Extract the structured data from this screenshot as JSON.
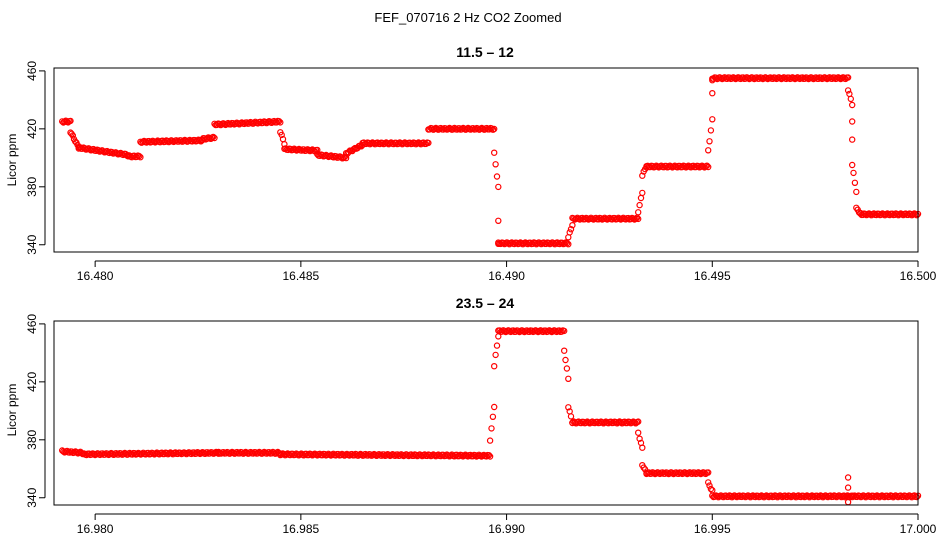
{
  "figure": {
    "title": "FEF_070716  2 Hz CO2 Zoomed"
  },
  "chart_data": [
    {
      "type": "scatter",
      "title": "11.5 – 12",
      "xlabel": "",
      "ylabel": "Licor ppm",
      "xlim": [
        16.479,
        16.5
      ],
      "ylim": [
        335,
        462
      ],
      "xticks": [
        "16.480",
        "16.485",
        "16.490",
        "16.495",
        "16.500"
      ],
      "xtick_values": [
        16.48,
        16.485,
        16.49,
        16.495,
        16.5
      ],
      "yticks": [
        "340",
        "380",
        "420",
        "460"
      ],
      "ytick_values": [
        340,
        380,
        420,
        460
      ],
      "grid": false,
      "marker": "open-circle",
      "color": "#ff0000",
      "segments": [
        {
          "x": [
            16.4792,
            16.4794
          ],
          "y": [
            425,
            425
          ]
        },
        {
          "x": [
            16.4794,
            16.4796
          ],
          "y": [
            418,
            407
          ]
        },
        {
          "x": [
            16.4796,
            16.4808
          ],
          "y": [
            407,
            402
          ]
        },
        {
          "x": [
            16.4808,
            16.4811
          ],
          "y": [
            401,
            401
          ]
        },
        {
          "x": [
            16.4811,
            16.4826
          ],
          "y": [
            411,
            412
          ]
        },
        {
          "x": [
            16.4826,
            16.4829
          ],
          "y": [
            413,
            414
          ]
        },
        {
          "x": [
            16.4829,
            16.4845
          ],
          "y": [
            423,
            425
          ]
        },
        {
          "x": [
            16.4845,
            16.4846
          ],
          "y": [
            418,
            410
          ]
        },
        {
          "x": [
            16.4846,
            16.4854
          ],
          "y": [
            406,
            405
          ]
        },
        {
          "x": [
            16.4854,
            16.4861
          ],
          "y": [
            402,
            400
          ]
        },
        {
          "x": [
            16.4861,
            16.4865
          ],
          "y": [
            403,
            409
          ]
        },
        {
          "x": [
            16.4865,
            16.4881
          ],
          "y": [
            410,
            410
          ]
        },
        {
          "x": [
            16.4881,
            16.4897
          ],
          "y": [
            420,
            420
          ]
        },
        {
          "x": [
            16.4897,
            16.4898
          ],
          "y": [
            403,
            380
          ]
        },
        {
          "x": [
            16.4898,
            16.4898
          ],
          "y": [
            356,
            341
          ]
        },
        {
          "x": [
            16.4898,
            16.4915
          ],
          "y": [
            341,
            341
          ]
        },
        {
          "x": [
            16.4915,
            16.4916
          ],
          "y": [
            345,
            354
          ]
        },
        {
          "x": [
            16.4916,
            16.4932
          ],
          "y": [
            358,
            358
          ]
        },
        {
          "x": [
            16.4932,
            16.4933
          ],
          "y": [
            363,
            376
          ]
        },
        {
          "x": [
            16.4933,
            16.4934
          ],
          "y": [
            388,
            394
          ]
        },
        {
          "x": [
            16.4934,
            16.4949
          ],
          "y": [
            394,
            394
          ]
        },
        {
          "x": [
            16.4949,
            16.495
          ],
          "y": [
            405,
            426
          ]
        },
        {
          "x": [
            16.495,
            16.495
          ],
          "y": [
            445,
            454
          ]
        },
        {
          "x": [
            16.495,
            16.4983
          ],
          "y": [
            455,
            455
          ]
        },
        {
          "x": [
            16.4983,
            16.4984
          ],
          "y": [
            447,
            437
          ]
        },
        {
          "x": [
            16.4984,
            16.4984
          ],
          "y": [
            425,
            412
          ]
        },
        {
          "x": [
            16.4984,
            16.4985
          ],
          "y": [
            395,
            377
          ]
        },
        {
          "x": [
            16.4985,
            16.4986
          ],
          "y": [
            365,
            362
          ]
        },
        {
          "x": [
            16.4986,
            16.5
          ],
          "y": [
            361,
            361
          ]
        }
      ]
    },
    {
      "type": "scatter",
      "title": "23.5 – 24",
      "xlabel": "",
      "ylabel": "Licor ppm",
      "xlim": [
        16.979,
        17.0
      ],
      "ylim": [
        335,
        462
      ],
      "xticks": [
        "16.980",
        "16.985",
        "16.990",
        "16.995",
        "17.000"
      ],
      "xtick_values": [
        16.98,
        16.985,
        16.99,
        16.995,
        17.0
      ],
      "yticks": [
        "340",
        "380",
        "420",
        "460"
      ],
      "ytick_values": [
        340,
        380,
        420,
        460
      ],
      "grid": false,
      "marker": "open-circle",
      "color": "#ff0000",
      "segments": [
        {
          "x": [
            16.9792,
            16.9797
          ],
          "y": [
            372,
            371
          ]
        },
        {
          "x": [
            16.9797,
            16.983
          ],
          "y": [
            370,
            371
          ]
        },
        {
          "x": [
            16.983,
            16.9845
          ],
          "y": [
            371,
            371
          ]
        },
        {
          "x": [
            16.9845,
            16.9896
          ],
          "y": [
            370,
            369
          ]
        },
        {
          "x": [
            16.9896,
            16.9897
          ],
          "y": [
            380,
            403
          ]
        },
        {
          "x": [
            16.9897,
            16.9898
          ],
          "y": [
            431,
            452
          ]
        },
        {
          "x": [
            16.9898,
            16.9914
          ],
          "y": [
            455,
            455
          ]
        },
        {
          "x": [
            16.9914,
            16.9915
          ],
          "y": [
            442,
            422
          ]
        },
        {
          "x": [
            16.9915,
            16.9916
          ],
          "y": [
            403,
            392
          ]
        },
        {
          "x": [
            16.9916,
            16.9932
          ],
          "y": [
            392,
            392
          ]
        },
        {
          "x": [
            16.9932,
            16.9933
          ],
          "y": [
            385,
            374
          ]
        },
        {
          "x": [
            16.9933,
            16.9934
          ],
          "y": [
            363,
            357
          ]
        },
        {
          "x": [
            16.9934,
            16.9949
          ],
          "y": [
            357,
            357
          ]
        },
        {
          "x": [
            16.9949,
            16.995
          ],
          "y": [
            350,
            345
          ]
        },
        {
          "x": [
            16.995,
            16.9982
          ],
          "y": [
            341,
            341
          ]
        },
        {
          "x": [
            16.9982,
            16.9984
          ],
          "y": [
            341,
            341
          ]
        },
        {
          "x": [
            16.9984,
            17.0
          ],
          "y": [
            341,
            341
          ]
        }
      ],
      "outliers": {
        "x": [
          16.9983,
          16.9983,
          16.9983
        ],
        "y": [
          354,
          337,
          347
        ]
      }
    }
  ]
}
